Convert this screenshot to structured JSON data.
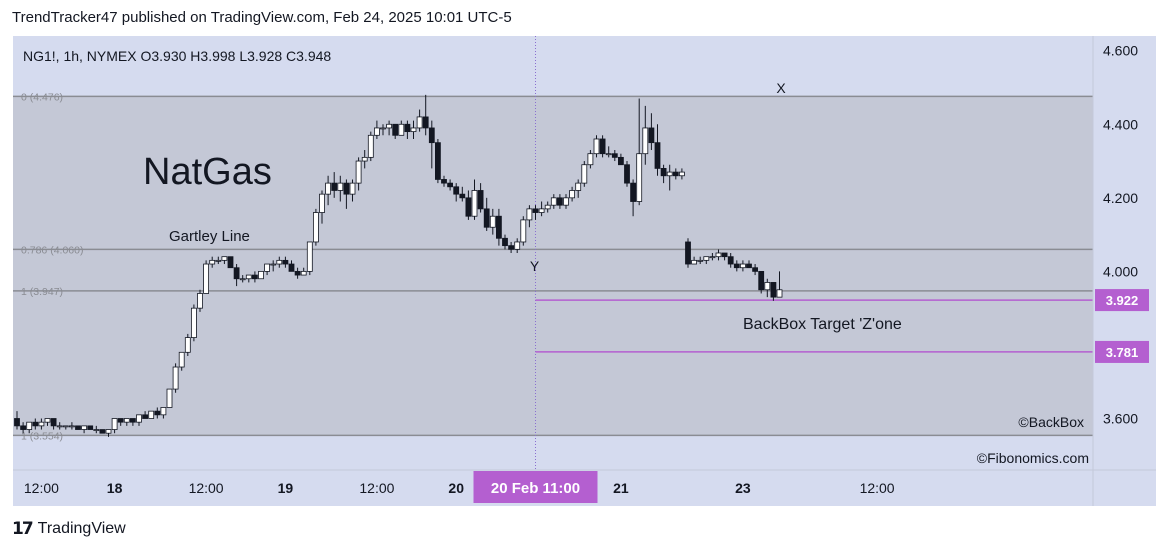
{
  "header": {
    "published_text": "TrendTracker47 published on TradingView.com, Feb 24, 2025 10:01 UTC-5"
  },
  "symbol_info": {
    "text": "NG1!, 1h, NYMEX  O3.930  H3.998  L3.928  C3.948"
  },
  "annotations": {
    "title": "NatGas",
    "gartley_line": "Gartley Line",
    "backbox_zone": "BackBox Target 'Z'one",
    "point_x": "X",
    "point_y": "Y",
    "copyright_backbox": "©BackBox",
    "copyright_fibonomics": "©Fibonomics.com"
  },
  "fib_levels": [
    {
      "label": "0 (4.476)",
      "price": 4.476
    },
    {
      "label": "0.786 (4.060)",
      "price": 4.06
    },
    {
      "label": "1 (3.947)",
      "price": 3.947
    },
    {
      "label": "1 (3.554)",
      "price": 3.554
    }
  ],
  "targets": [
    {
      "label": "3.922",
      "price": 3.922,
      "color": "#b45fd0"
    },
    {
      "label": "3.781",
      "price": 3.781,
      "color": "#b45fd0"
    }
  ],
  "colors": {
    "background": "#d5dbef",
    "fib_zone": "#c4c8d6",
    "fib_line": "#8a8c93",
    "target": "#b45fd0",
    "candle_up": "#ffffff",
    "candle_down": "#131722",
    "crosshair_label": "#b45fd0"
  },
  "footer": {
    "brand": "TradingView",
    "logo_icon": "tradingview-logo-icon"
  },
  "chart_data": {
    "type": "candlestick",
    "symbol": "NG1!",
    "timeframe": "1h",
    "exchange": "NYMEX",
    "y_ticks": [
      4.6,
      4.4,
      4.2,
      4.0,
      3.6
    ],
    "y_tick_labels": [
      "4.600",
      "4.400",
      "4.200",
      "4.000",
      "3.600"
    ],
    "ylim": [
      3.46,
      4.64
    ],
    "x_ticks": [
      {
        "label": "12:00",
        "bar": 4,
        "bold": false
      },
      {
        "label": "18",
        "bar": 16,
        "bold": true
      },
      {
        "label": "12:00",
        "bar": 31,
        "bold": false
      },
      {
        "label": "19",
        "bar": 44,
        "bold": true
      },
      {
        "label": "12:00",
        "bar": 59,
        "bold": false
      },
      {
        "label": "20",
        "bar": 72,
        "bold": true
      },
      {
        "label": "21",
        "bar": 99,
        "bold": true
      },
      {
        "label": "23",
        "bar": 119,
        "bold": true
      },
      {
        "label": "12:00",
        "bar": 141,
        "bold": false
      }
    ],
    "crosshair": {
      "label": "20 Feb   11:00",
      "bar": 85
    },
    "candles": [
      [
        3.6,
        3.62,
        3.57,
        3.58
      ],
      [
        3.58,
        3.59,
        3.56,
        3.57
      ],
      [
        3.57,
        3.59,
        3.56,
        3.59
      ],
      [
        3.59,
        3.6,
        3.57,
        3.58
      ],
      [
        3.58,
        3.6,
        3.57,
        3.59
      ],
      [
        3.59,
        3.6,
        3.58,
        3.6
      ],
      [
        3.6,
        3.6,
        3.57,
        3.58
      ],
      [
        3.58,
        3.59,
        3.57,
        3.58
      ],
      [
        3.58,
        3.58,
        3.57,
        3.58
      ],
      [
        3.58,
        3.59,
        3.57,
        3.58
      ],
      [
        3.58,
        3.58,
        3.57,
        3.57
      ],
      [
        3.57,
        3.58,
        3.56,
        3.58
      ],
      [
        3.58,
        3.58,
        3.57,
        3.57
      ],
      [
        3.57,
        3.58,
        3.56,
        3.57
      ],
      [
        3.57,
        3.57,
        3.56,
        3.56
      ],
      [
        3.56,
        3.57,
        3.55,
        3.57
      ],
      [
        3.57,
        3.6,
        3.56,
        3.6
      ],
      [
        3.6,
        3.6,
        3.58,
        3.59
      ],
      [
        3.59,
        3.6,
        3.58,
        3.6
      ],
      [
        3.6,
        3.6,
        3.58,
        3.59
      ],
      [
        3.59,
        3.61,
        3.58,
        3.61
      ],
      [
        3.61,
        3.62,
        3.6,
        3.6
      ],
      [
        3.6,
        3.62,
        3.6,
        3.62
      ],
      [
        3.62,
        3.63,
        3.6,
        3.61
      ],
      [
        3.61,
        3.63,
        3.6,
        3.63
      ],
      [
        3.63,
        3.68,
        3.63,
        3.68
      ],
      [
        3.68,
        3.75,
        3.67,
        3.74
      ],
      [
        3.74,
        3.78,
        3.73,
        3.78
      ],
      [
        3.78,
        3.83,
        3.77,
        3.82
      ],
      [
        3.82,
        3.91,
        3.81,
        3.9
      ],
      [
        3.9,
        3.95,
        3.89,
        3.94
      ],
      [
        3.94,
        4.03,
        3.94,
        4.02
      ],
      [
        4.02,
        4.04,
        4.01,
        4.03
      ],
      [
        4.03,
        4.04,
        4.02,
        4.03
      ],
      [
        4.03,
        4.04,
        4.02,
        4.04
      ],
      [
        4.04,
        4.04,
        4.01,
        4.01
      ],
      [
        4.01,
        4.02,
        3.96,
        3.98
      ],
      [
        3.98,
        3.99,
        3.97,
        3.98
      ],
      [
        3.98,
        3.99,
        3.97,
        3.99
      ],
      [
        3.99,
        4.0,
        3.97,
        3.98
      ],
      [
        3.98,
        4.0,
        3.98,
        4.0
      ],
      [
        4.0,
        4.02,
        3.99,
        4.02
      ],
      [
        4.02,
        4.03,
        4.0,
        4.02
      ],
      [
        4.02,
        4.04,
        4.01,
        4.03
      ],
      [
        4.03,
        4.04,
        4.01,
        4.02
      ],
      [
        4.02,
        4.03,
        4.0,
        4.0
      ],
      [
        4.0,
        4.01,
        3.98,
        3.99
      ],
      [
        3.99,
        4.01,
        3.99,
        4.0
      ],
      [
        4.0,
        4.08,
        3.99,
        4.08
      ],
      [
        4.08,
        4.17,
        4.07,
        4.16
      ],
      [
        4.16,
        4.22,
        4.13,
        4.21
      ],
      [
        4.21,
        4.26,
        4.18,
        4.24
      ],
      [
        4.24,
        4.27,
        4.2,
        4.22
      ],
      [
        4.22,
        4.26,
        4.19,
        4.24
      ],
      [
        4.24,
        4.25,
        4.17,
        4.21
      ],
      [
        4.21,
        4.25,
        4.19,
        4.24
      ],
      [
        4.24,
        4.31,
        4.22,
        4.3
      ],
      [
        4.3,
        4.33,
        4.28,
        4.31
      ],
      [
        4.31,
        4.38,
        4.3,
        4.37
      ],
      [
        4.37,
        4.41,
        4.36,
        4.39
      ],
      [
        4.39,
        4.4,
        4.37,
        4.39
      ],
      [
        4.39,
        4.41,
        4.37,
        4.4
      ],
      [
        4.4,
        4.4,
        4.36,
        4.37
      ],
      [
        4.37,
        4.41,
        4.37,
        4.4
      ],
      [
        4.4,
        4.41,
        4.36,
        4.38
      ],
      [
        4.38,
        4.41,
        4.36,
        4.39
      ],
      [
        4.39,
        4.44,
        4.38,
        4.42
      ],
      [
        4.42,
        4.48,
        4.37,
        4.39
      ],
      [
        4.39,
        4.41,
        4.28,
        4.35
      ],
      [
        4.35,
        4.36,
        4.24,
        4.25
      ],
      [
        4.25,
        4.26,
        4.23,
        4.24
      ],
      [
        4.24,
        4.25,
        4.22,
        4.23
      ],
      [
        4.23,
        4.24,
        4.19,
        4.21
      ],
      [
        4.21,
        4.23,
        4.19,
        4.2
      ],
      [
        4.2,
        4.22,
        4.14,
        4.15
      ],
      [
        4.15,
        4.25,
        4.14,
        4.22
      ],
      [
        4.22,
        4.24,
        4.16,
        4.17
      ],
      [
        4.17,
        4.2,
        4.11,
        4.12
      ],
      [
        4.12,
        4.17,
        4.1,
        4.15
      ],
      [
        4.15,
        4.17,
        4.07,
        4.09
      ],
      [
        4.09,
        4.1,
        4.06,
        4.07
      ],
      [
        4.07,
        4.08,
        4.05,
        4.06
      ],
      [
        4.06,
        4.09,
        4.05,
        4.08
      ],
      [
        4.08,
        4.15,
        4.07,
        4.14
      ],
      [
        4.14,
        4.18,
        4.12,
        4.17
      ],
      [
        4.17,
        4.18,
        4.14,
        4.16
      ],
      [
        4.16,
        4.19,
        4.15,
        4.17
      ],
      [
        4.17,
        4.19,
        4.16,
        4.18
      ],
      [
        4.18,
        4.21,
        4.17,
        4.2
      ],
      [
        4.2,
        4.21,
        4.17,
        4.18
      ],
      [
        4.18,
        4.21,
        4.17,
        4.2
      ],
      [
        4.2,
        4.23,
        4.19,
        4.22
      ],
      [
        4.22,
        4.25,
        4.2,
        4.24
      ],
      [
        4.24,
        4.3,
        4.23,
        4.29
      ],
      [
        4.29,
        4.33,
        4.28,
        4.32
      ],
      [
        4.32,
        4.37,
        4.31,
        4.36
      ],
      [
        4.36,
        4.37,
        4.31,
        4.32
      ],
      [
        4.32,
        4.34,
        4.31,
        4.32
      ],
      [
        4.32,
        4.33,
        4.3,
        4.31
      ],
      [
        4.31,
        4.32,
        4.29,
        4.29
      ],
      [
        4.29,
        4.3,
        4.23,
        4.24
      ],
      [
        4.24,
        4.25,
        4.15,
        4.19
      ],
      [
        4.19,
        4.47,
        4.18,
        4.32
      ],
      [
        4.32,
        4.45,
        4.29,
        4.39
      ],
      [
        4.39,
        4.43,
        4.33,
        4.35
      ],
      [
        4.35,
        4.4,
        4.26,
        4.28
      ],
      [
        4.28,
        4.29,
        4.24,
        4.26
      ],
      [
        4.26,
        4.29,
        4.22,
        4.27
      ],
      [
        4.27,
        4.28,
        4.25,
        4.26
      ],
      [
        4.26,
        4.28,
        4.25,
        4.27
      ],
      [
        4.08,
        4.09,
        4.01,
        4.02
      ],
      [
        4.02,
        4.04,
        4.02,
        4.03
      ],
      [
        4.03,
        4.04,
        4.02,
        4.03
      ],
      [
        4.03,
        4.04,
        4.02,
        4.04
      ],
      [
        4.04,
        4.05,
        4.03,
        4.04
      ],
      [
        4.04,
        4.06,
        4.03,
        4.05
      ],
      [
        4.05,
        4.05,
        4.03,
        4.04
      ],
      [
        4.04,
        4.05,
        4.01,
        4.02
      ],
      [
        4.02,
        4.03,
        4.0,
        4.01
      ],
      [
        4.01,
        4.03,
        4.0,
        4.02
      ],
      [
        4.02,
        4.03,
        4.01,
        4.01
      ],
      [
        4.01,
        4.02,
        3.99,
        4.0
      ],
      [
        4.0,
        4.0,
        3.94,
        3.95
      ],
      [
        3.95,
        3.98,
        3.93,
        3.97
      ],
      [
        3.97,
        3.97,
        3.92,
        3.93
      ],
      [
        3.93,
        4.0,
        3.93,
        3.95
      ]
    ]
  }
}
